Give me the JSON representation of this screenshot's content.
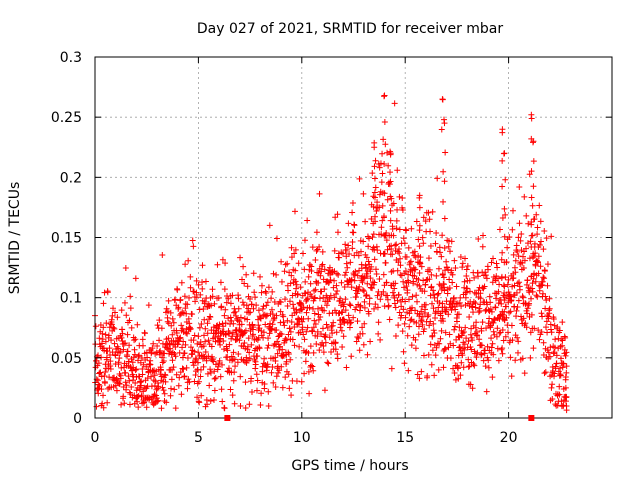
{
  "chart_data": {
    "type": "scatter",
    "title": "Day 027 of 2021, SRMTID for receiver mbar",
    "xlabel": "GPS time / hours",
    "ylabel": "SRMTID / TECUs",
    "xlim": [
      0,
      25
    ],
    "ylim": [
      0,
      0.3
    ],
    "xticks": [
      0,
      5,
      10,
      15,
      20
    ],
    "yticks": [
      0,
      0.05,
      0.1,
      0.15,
      0.2,
      0.25,
      0.3
    ],
    "xtick_labels": [
      "0",
      "5",
      "10",
      "15",
      "20"
    ],
    "ytick_labels": [
      "0",
      "0.05",
      "0.1",
      "0.15",
      "0.2",
      "0.25",
      "0.3"
    ],
    "grid": true,
    "marker": "+",
    "color": "#ff0000",
    "gap_markers_x": [
      6.4,
      21.1
    ],
    "series": [
      {
        "name": "SRMTID",
        "profile": [
          {
            "x": 0.0,
            "y": 0.045
          },
          {
            "x": 0.5,
            "y": 0.045
          },
          {
            "x": 1.0,
            "y": 0.05
          },
          {
            "x": 1.5,
            "y": 0.05
          },
          {
            "x": 2.0,
            "y": 0.035
          },
          {
            "x": 2.5,
            "y": 0.035
          },
          {
            "x": 3.0,
            "y": 0.04
          },
          {
            "x": 3.5,
            "y": 0.055
          },
          {
            "x": 4.0,
            "y": 0.065
          },
          {
            "x": 5.0,
            "y": 0.065
          },
          {
            "x": 6.0,
            "y": 0.06
          },
          {
            "x": 7.0,
            "y": 0.065
          },
          {
            "x": 8.0,
            "y": 0.065
          },
          {
            "x": 9.0,
            "y": 0.07
          },
          {
            "x": 10.0,
            "y": 0.085
          },
          {
            "x": 11.0,
            "y": 0.095
          },
          {
            "x": 12.0,
            "y": 0.1
          },
          {
            "x": 13.0,
            "y": 0.11
          },
          {
            "x": 13.5,
            "y": 0.14
          },
          {
            "x": 14.0,
            "y": 0.15
          },
          {
            "x": 15.0,
            "y": 0.12
          },
          {
            "x": 16.0,
            "y": 0.1
          },
          {
            "x": 17.0,
            "y": 0.09
          },
          {
            "x": 18.0,
            "y": 0.08
          },
          {
            "x": 19.0,
            "y": 0.085
          },
          {
            "x": 20.0,
            "y": 0.09
          },
          {
            "x": 21.0,
            "y": 0.12
          },
          {
            "x": 21.5,
            "y": 0.11
          },
          {
            "x": 22.0,
            "y": 0.06
          },
          {
            "x": 22.5,
            "y": 0.04
          },
          {
            "x": 22.8,
            "y": 0.04
          }
        ],
        "peaks": [
          {
            "x": 13.5,
            "y": 0.225
          },
          {
            "x": 14.0,
            "y": 0.268
          },
          {
            "x": 14.3,
            "y": 0.22
          },
          {
            "x": 15.7,
            "y": 0.185
          },
          {
            "x": 16.8,
            "y": 0.265
          },
          {
            "x": 16.9,
            "y": 0.245
          },
          {
            "x": 19.7,
            "y": 0.24
          },
          {
            "x": 19.8,
            "y": 0.22
          },
          {
            "x": 21.1,
            "y": 0.252
          },
          {
            "x": 21.2,
            "y": 0.23
          },
          {
            "x": 22.8,
            "y": 0.01
          }
        ]
      }
    ]
  }
}
